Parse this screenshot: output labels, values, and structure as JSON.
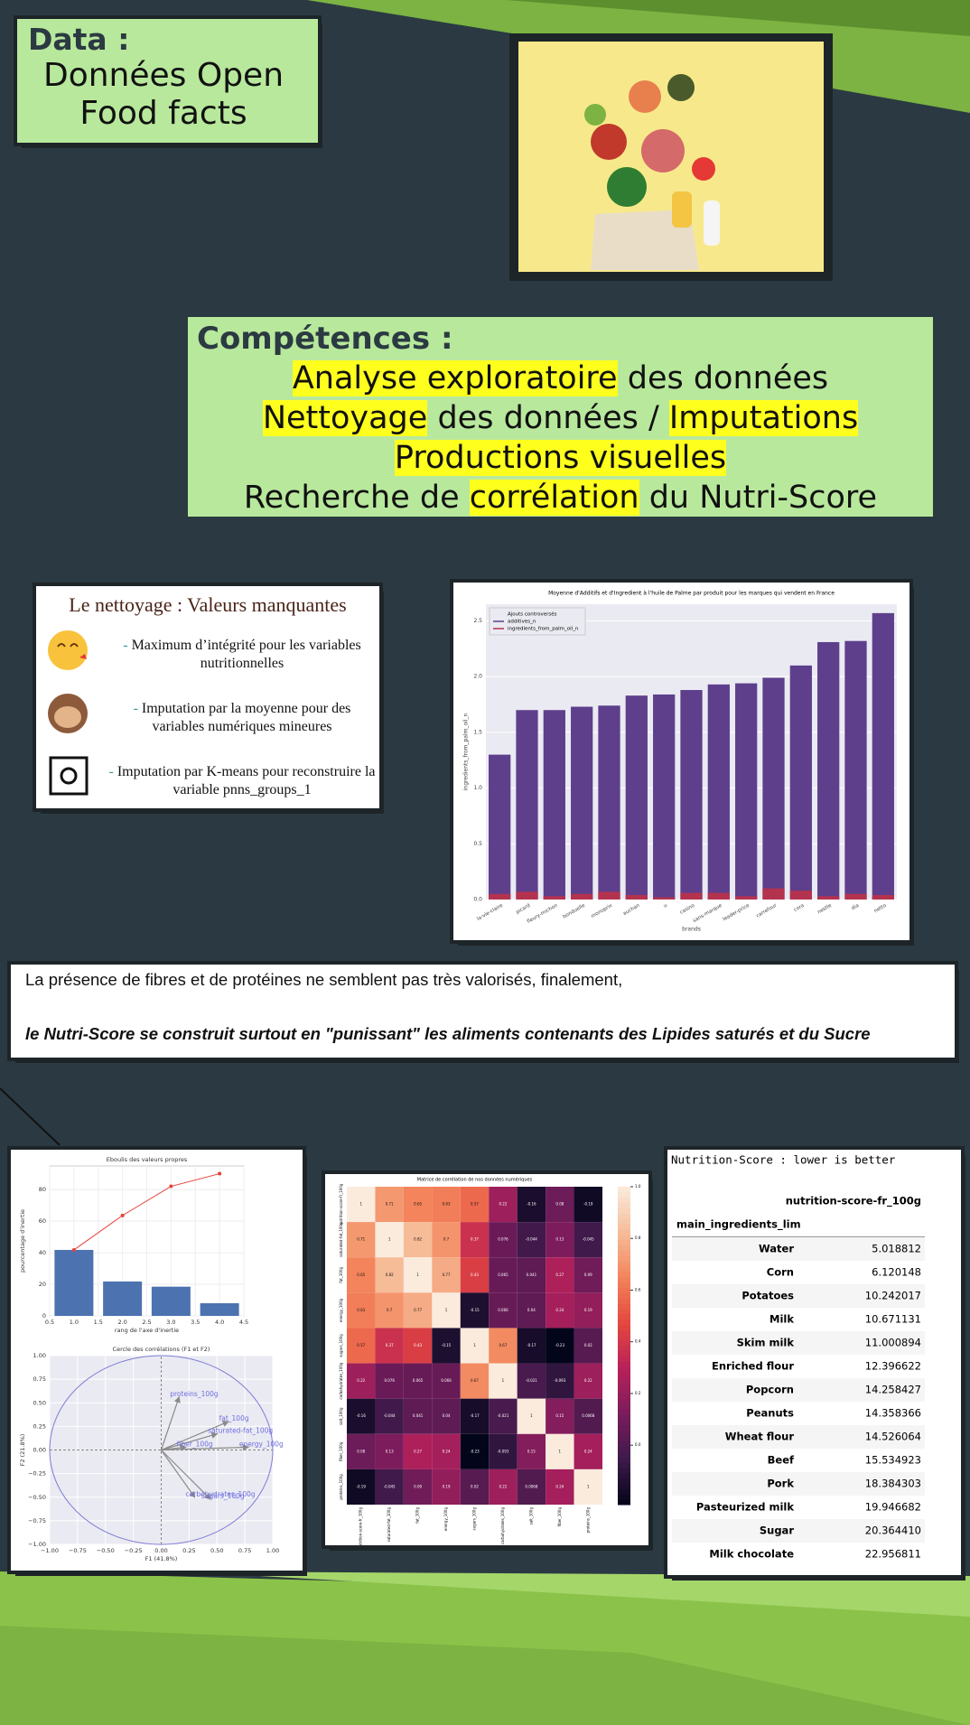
{
  "slide": {
    "data_box": {
      "label": "Data :",
      "text": "Données Open Food facts"
    },
    "competences": {
      "title": "Compétences :",
      "lines": [
        [
          {
            "text": "Analyse exploratoire",
            "highlight": true
          },
          {
            "text": "des données",
            "highlight": false
          }
        ],
        [
          {
            "text": "Nettoyage",
            "highlight": true
          },
          {
            "text": "des données /",
            "highlight": false
          },
          {
            "text": "Imputations",
            "highlight": true
          }
        ],
        [
          {
            "text": "Productions visuelles",
            "highlight": true
          }
        ],
        [
          {
            "text": "Recherche de",
            "highlight": false
          },
          {
            "text": "corrélation",
            "highlight": true
          },
          {
            "text": "du Nutri-Score",
            "highlight": false
          }
        ]
      ]
    },
    "cleaning": {
      "title": "Le nettoyage : Valeurs manquantes",
      "items": [
        "Maximum d’intégrité pour les variables nutritionnelles",
        "Imputation par la moyenne pour des variables numériques mineures",
        "Imputation par K-means pour reconstruire la variable pnns_groups_1"
      ]
    },
    "conclusion": {
      "line1": "La présence de fibres et de protéines ne semblent pas très valorisés, finalement,",
      "line2": "le Nutri-Score se construit surtout en \"punissant\" les aliments contenants des Lipides saturés et du Sucre"
    }
  },
  "chart_data": [
    {
      "type": "bar",
      "barmode": "overlay",
      "title": "Moyenne d'Additifs et d'Ingredient à l'huile de Palme par produit pour les marques qui vendent en France",
      "xlabel": "brands",
      "ylabel": "ingredients_from_palm_oil_n",
      "legend_title": "Ajouts controversés",
      "legend": "upper left",
      "grid": true,
      "categories": [
        "la-vie-claire",
        "picard",
        "fleury-michon",
        "bonduelle",
        "monoprix",
        "auchan",
        "u",
        "casino",
        "sans-marque",
        "leader-price",
        "carrefour",
        "cora",
        "nestle",
        "dia",
        "netto"
      ],
      "series": [
        {
          "name": "additives_n",
          "color": "#5e3f8c",
          "values": [
            1.3,
            1.7,
            1.7,
            1.73,
            1.74,
            1.83,
            1.84,
            1.88,
            1.93,
            1.94,
            1.99,
            2.1,
            2.31,
            2.32,
            2.57
          ]
        },
        {
          "name": "ingredients_from_palm_oil_n",
          "color": "#b3334f",
          "values": [
            0.05,
            0.07,
            0.03,
            0.05,
            0.07,
            0.04,
            0.02,
            0.06,
            0.06,
            0.03,
            0.1,
            0.08,
            0.03,
            0.05,
            0.04
          ]
        }
      ],
      "ylim": [
        0,
        2.65
      ],
      "yticks": [
        {
          "value": 0,
          "label": "0.0"
        },
        0.5,
        {
          "value": 1,
          "label": "1.0"
        },
        1.5,
        {
          "value": 2,
          "label": "2.0"
        },
        2.5
      ]
    },
    {
      "type": "bar_line",
      "title": "Eboulis des valeurs propres",
      "xlabel": "rang de l'axe d'inertie",
      "ylabel": "pourcentage d'inertie",
      "grid": true,
      "x": [
        1,
        2,
        3,
        4
      ],
      "values": [
        41.8,
        21.8,
        18.5,
        8.0
      ],
      "bar_color": "#4c72b0",
      "line_values": [
        41.8,
        63.6,
        82.1,
        90.1
      ],
      "line_color": "#e8403a",
      "xlim": [
        0.5,
        4.5
      ],
      "xticks": [
        0.5,
        {
          "value": 1,
          "label": "1.0"
        },
        1.5,
        {
          "value": 2,
          "label": "2.0"
        },
        2.5,
        {
          "value": 3,
          "label": "3.0"
        },
        3.5,
        {
          "value": 4,
          "label": "4.0"
        },
        4.5
      ],
      "ylim": [
        0,
        95
      ],
      "yticks": [
        0,
        20,
        40,
        60,
        80
      ]
    },
    {
      "type": "vector",
      "title": "Cercle des corrélations (F1 et F2)",
      "xlabel": "F1 (41.8%)",
      "ylabel": "F2 (21.8%)",
      "grid": true,
      "circle_color": "#7b7bd6",
      "arrow_color": "#8a8a8a",
      "label_color": "#6f6fe0",
      "vectors": [
        {
          "name": "proteins_100g",
          "x": 0.16,
          "y": 0.56
        },
        {
          "name": "fat_100g",
          "x": 0.6,
          "y": 0.3
        },
        {
          "name": "saturated-fat_100g",
          "x": 0.5,
          "y": 0.17
        },
        {
          "name": "fiber_100g",
          "x": 0.22,
          "y": 0.03
        },
        {
          "name": "energy_100g",
          "x": 0.78,
          "y": 0.03
        },
        {
          "name": "carbohydrates_100g",
          "x": 0.3,
          "y": -0.5
        },
        {
          "name": "sugars_100g",
          "x": 0.44,
          "y": -0.52
        }
      ],
      "xlim": [
        -1,
        1
      ],
      "xticks": [
        {
          "value": -1,
          "label": "−1.00"
        },
        {
          "value": -0.75,
          "label": "−0.75"
        },
        {
          "value": -0.5,
          "label": "−0.50"
        },
        {
          "value": -0.25,
          "label": "−0.25"
        },
        {
          "value": 0,
          "label": "0.00"
        },
        0.25,
        {
          "value": 0.5,
          "label": "0.50"
        },
        0.75,
        {
          "value": 1,
          "label": "1.00"
        }
      ],
      "ylim": [
        -1,
        1
      ],
      "yticks": [
        {
          "value": -1,
          "label": "−1.00"
        },
        {
          "value": -0.75,
          "label": "−0.75"
        },
        {
          "value": -0.5,
          "label": "−0.50"
        },
        {
          "value": -0.25,
          "label": "−0.25"
        },
        {
          "value": 0,
          "label": "0.00"
        },
        0.25,
        {
          "value": 0.5,
          "label": "0.50"
        },
        0.75,
        {
          "value": 1,
          "label": "1.00"
        }
      ]
    },
    {
      "type": "heatmap",
      "title": "Matrice de corrélation de nos données numériques",
      "labels": [
        "nutrition-score-fr_100g",
        "saturated-fat_100g",
        "fat_100g",
        "energy_100g",
        "sugars_100g",
        "carbohydrates_100g",
        "salt_100g",
        "fiber_100g",
        "proteins_100g"
      ],
      "matrix": [
        [
          1,
          0.71,
          0.65,
          0.63,
          0.57,
          0.22,
          -0.16,
          0.08,
          -0.19
        ],
        [
          0.71,
          1,
          0.82,
          0.7,
          0.37,
          0.076,
          -0.044,
          0.13,
          -0.045
        ],
        [
          0.65,
          0.82,
          1,
          0.77,
          0.43,
          0.065,
          0.041,
          0.27,
          0.09
        ],
        [
          0.63,
          0.7,
          0.77,
          1,
          -0.15,
          0.066,
          0.04,
          0.24,
          0.19
        ],
        [
          0.57,
          0.37,
          0.43,
          -0.15,
          1,
          0.67,
          -0.17,
          -0.23,
          0.02
        ],
        [
          0.22,
          0.076,
          0.065,
          0.066,
          0.67,
          1,
          -0.021,
          -0.093,
          0.22
        ],
        [
          -0.16,
          -0.044,
          0.041,
          0.04,
          -0.17,
          -0.021,
          1,
          0.15,
          0.0068
        ],
        [
          0.08,
          0.13,
          0.27,
          0.24,
          -0.23,
          -0.093,
          0.15,
          1,
          0.24
        ],
        [
          -0.19,
          -0.045,
          0.09,
          0.19,
          0.02,
          0.22,
          0.0068,
          0.24,
          1
        ]
      ],
      "colorscale": [
        "#03051a",
        "#3d1a4a",
        "#7a1c5c",
        "#b8215a",
        "#e4473e",
        "#f3845b",
        "#f6bc98",
        "#faebdd"
      ],
      "zlim": [
        -0.23,
        1
      ],
      "zticks": [
        {
          "value": 0,
          "label": "0.0"
        },
        0.2,
        0.4,
        0.6,
        0.8,
        {
          "value": 1,
          "label": "1.0"
        }
      ]
    }
  ],
  "table": {
    "caption": "Nutrition-Score : lower is better",
    "column": "nutrition-score-fr_100g",
    "index_name": "main_ingredients_lim",
    "rows": [
      [
        "Water",
        "5.018812"
      ],
      [
        "Corn",
        "6.120148"
      ],
      [
        "Potatoes",
        "10.242017"
      ],
      [
        "Milk",
        "10.671131"
      ],
      [
        "Skim milk",
        "11.000894"
      ],
      [
        "Enriched flour",
        "12.396622"
      ],
      [
        "Popcorn",
        "14.258427"
      ],
      [
        "Peanuts",
        "14.358366"
      ],
      [
        "Wheat flour",
        "14.526064"
      ],
      [
        "Beef",
        "15.534923"
      ],
      [
        "Pork",
        "18.384303"
      ],
      [
        "Pasteurized milk",
        "19.946682"
      ],
      [
        "Sugar",
        "20.364410"
      ],
      [
        "Milk chocolate",
        "22.956811"
      ]
    ]
  }
}
